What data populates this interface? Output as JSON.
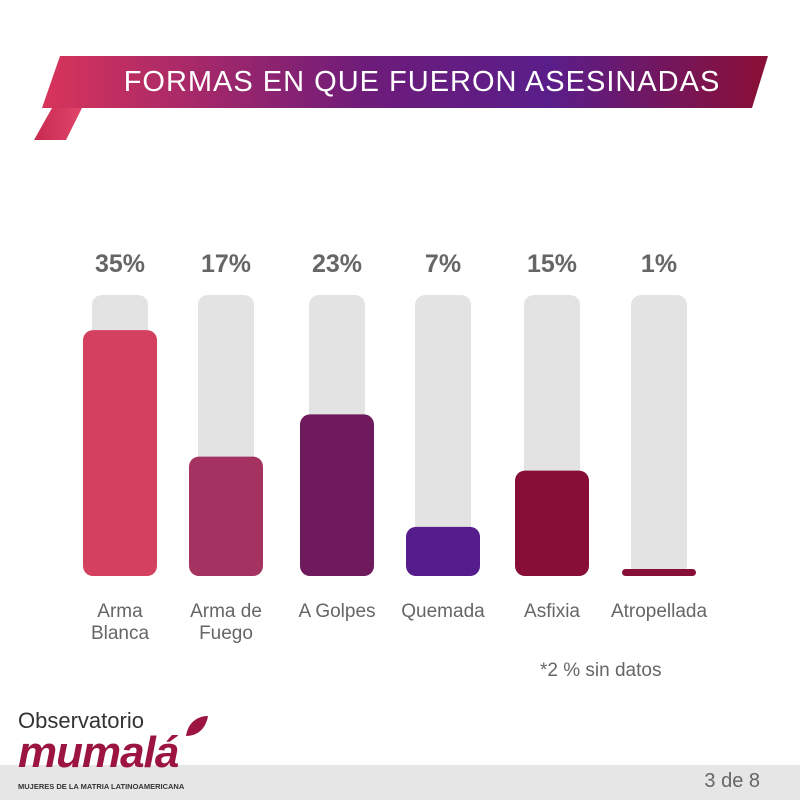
{
  "header": {
    "title": "FORMAS EN QUE FUERON ASESINADAS"
  },
  "chart_data": {
    "type": "bar",
    "categories": [
      [
        "Arma",
        "Blanca"
      ],
      [
        "Arma de",
        "Fuego"
      ],
      [
        "A Golpes"
      ],
      [
        "Quemada"
      ],
      [
        "Asfixia"
      ],
      [
        "Atropellada"
      ]
    ],
    "values": [
      35,
      17,
      23,
      7,
      15,
      1
    ],
    "value_labels": [
      "35%",
      "17%",
      "23%",
      "7%",
      "15%",
      "1%"
    ],
    "colors": [
      "#d4405f",
      "#a43362",
      "#6e1a5d",
      "#551c8c",
      "#870f37",
      "#870f37"
    ],
    "track_color": "#e3e3e3",
    "ylim": [
      0,
      40
    ]
  },
  "footnote": "*2 % sin datos",
  "footer": {
    "page": "3 de 8"
  },
  "logo": {
    "top": "Observatorio",
    "main": "mumalá",
    "sub": "MUJERES DE LA MATRIA LATINOAMERICANA"
  }
}
